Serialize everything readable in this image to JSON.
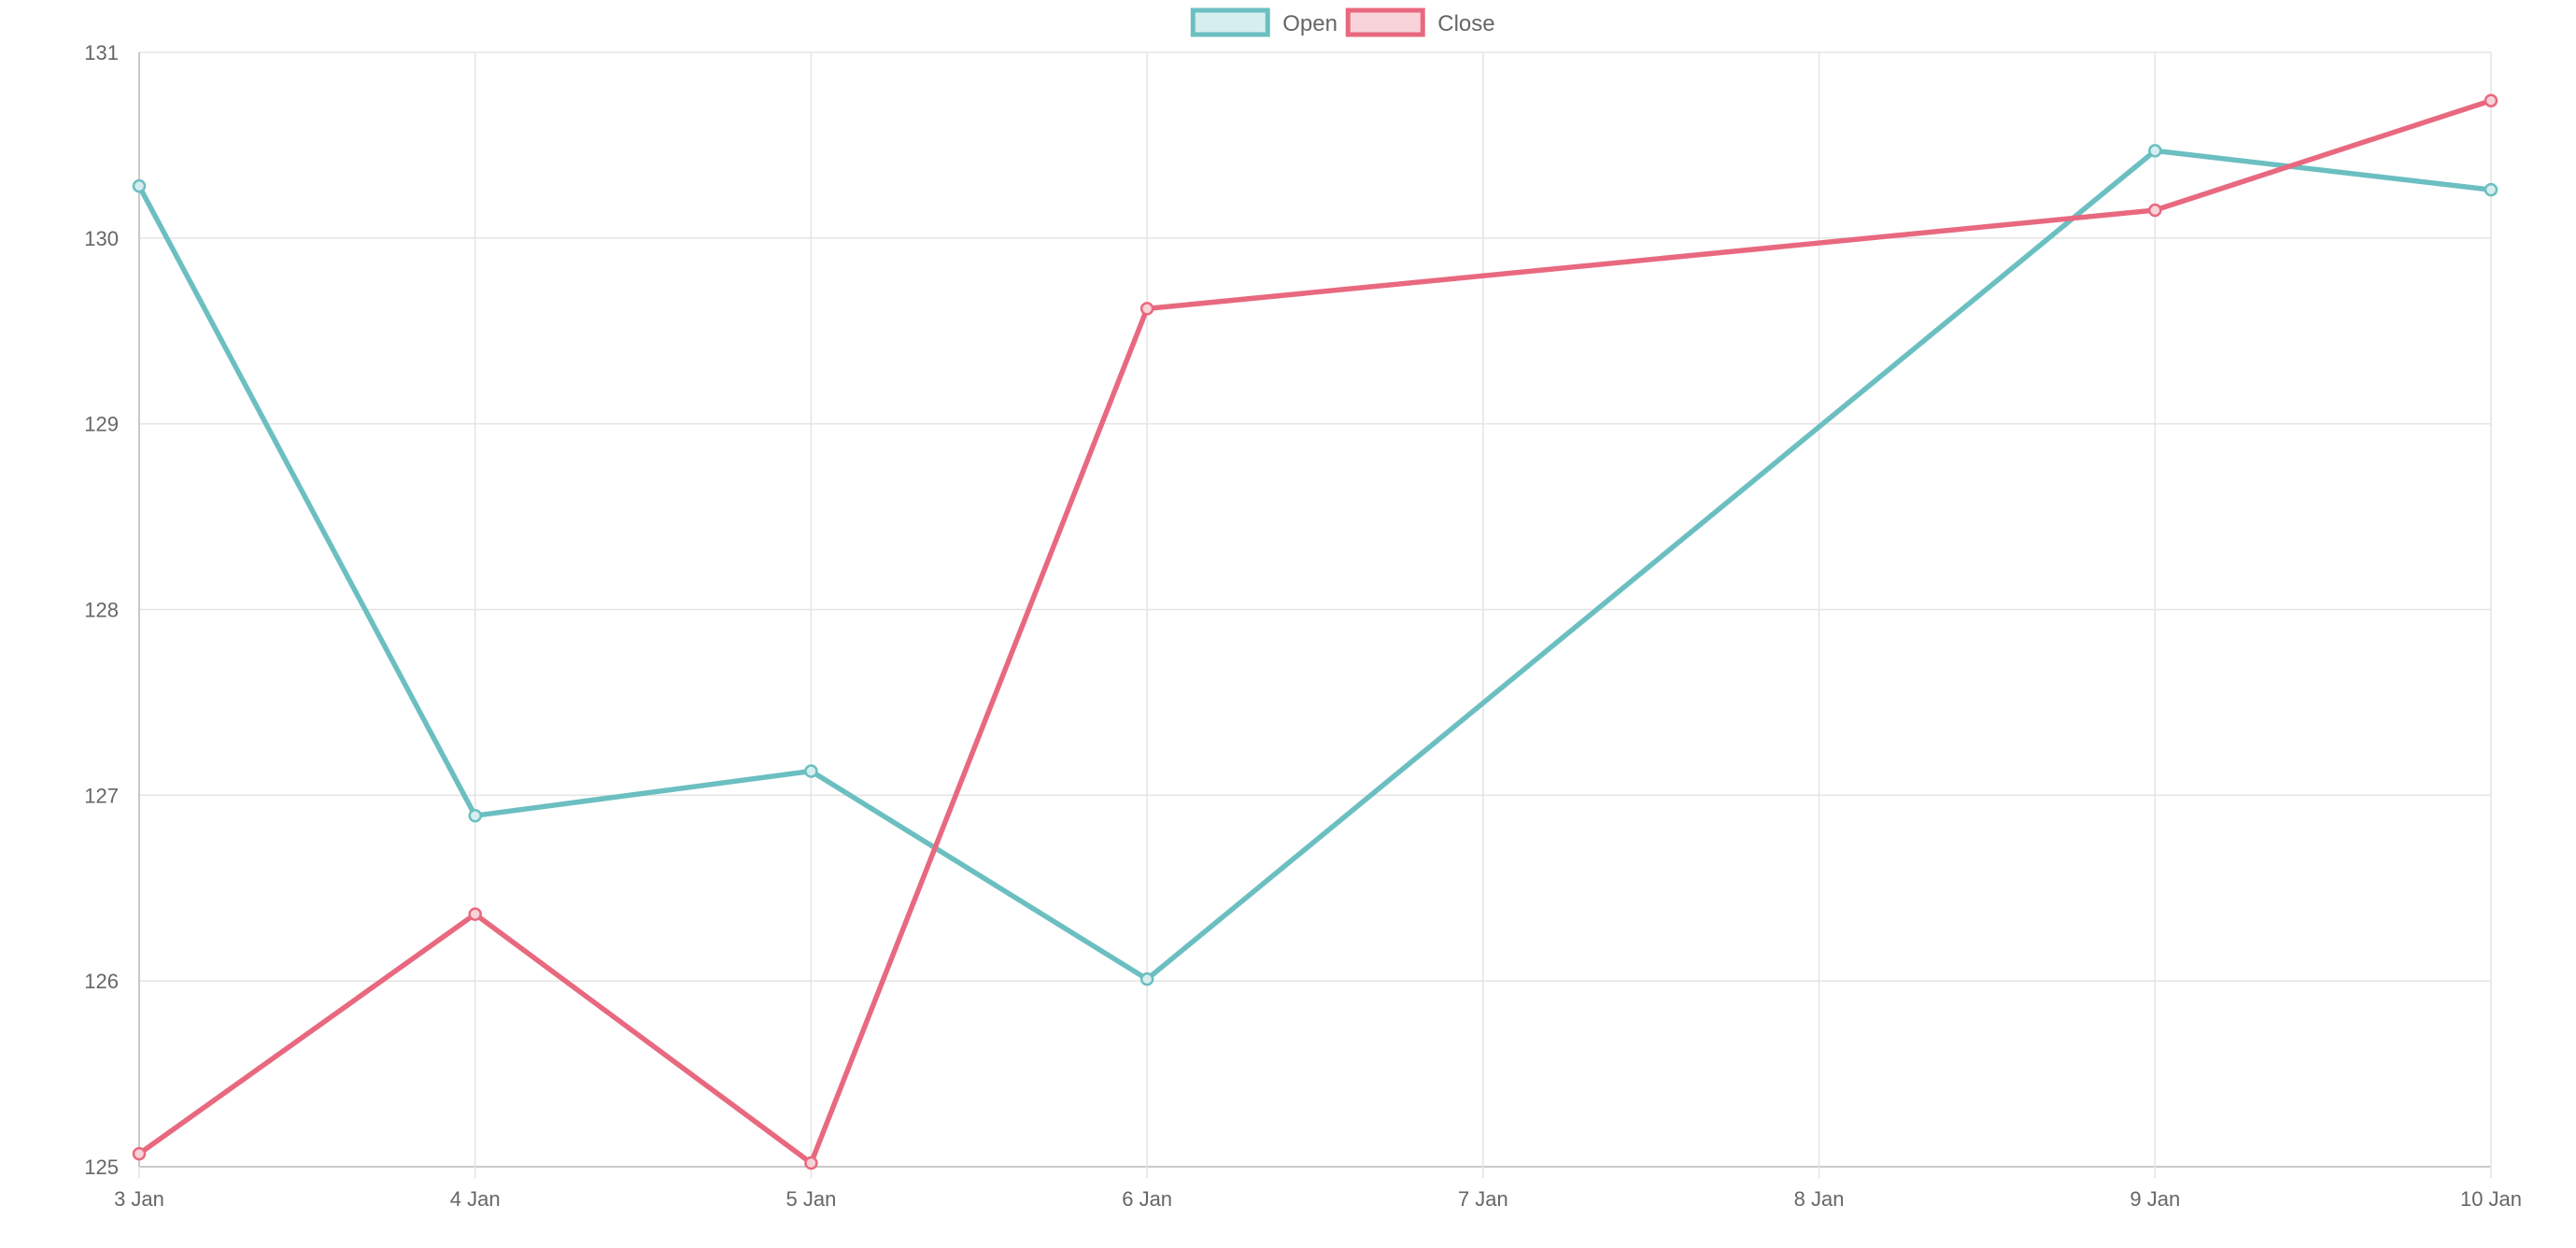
{
  "chart_data": {
    "type": "line",
    "title": "",
    "xlabel": "",
    "ylabel": "",
    "categories": [
      "3 Jan",
      "4 Jan",
      "5 Jan",
      "6 Jan",
      "7 Jan",
      "8 Jan",
      "9 Jan",
      "10 Jan"
    ],
    "y_ticks": [
      "125",
      "126",
      "127",
      "128",
      "129",
      "130",
      "131"
    ],
    "ylim": [
      125,
      131
    ],
    "grid": true,
    "legend_position": "top-center",
    "series": [
      {
        "name": "Open",
        "color": "#6bbfc1",
        "fill": "#d7eeee",
        "values": [
          130.28,
          126.89,
          127.13,
          126.01,
          null,
          null,
          130.47,
          130.26
        ]
      },
      {
        "name": "Close",
        "color": "#e8697f",
        "fill": "#f9d3da",
        "values": [
          125.07,
          126.36,
          125.02,
          129.62,
          null,
          null,
          130.15,
          130.74
        ]
      }
    ]
  }
}
